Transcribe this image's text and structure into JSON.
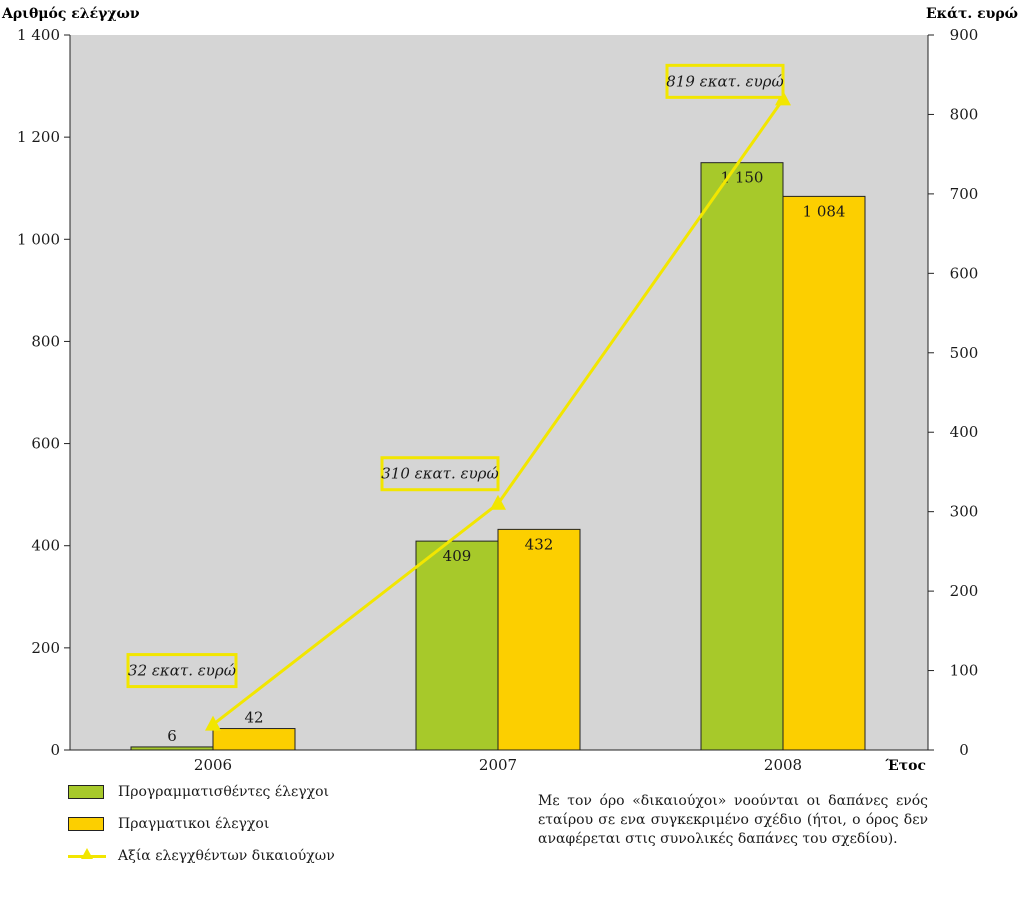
{
  "chart_data": {
    "type": "bar",
    "categories": [
      "2006",
      "2007",
      "2008"
    ],
    "series": [
      {
        "name": "Προγραμματισθέντες έλεγχοι",
        "values": [
          6,
          409,
          1150
        ],
        "labels": [
          "6",
          "409",
          "1 150"
        ],
        "color": "#a7c92a",
        "axis": "left"
      },
      {
        "name": "Πραγματικοί έλεγχοι",
        "values": [
          42,
          432,
          1084
        ],
        "labels": [
          "42",
          "432",
          "1 084"
        ],
        "color": "#fccf00",
        "axis": "left"
      }
    ],
    "line_series": {
      "name": "Αξία ελεγχθέντων δικαιούχων",
      "values": [
        32,
        310,
        819
      ],
      "labels": [
        "32 εκατ. ευρώ",
        "310 εκατ. ευρώ",
        "819 εκατ. ευρώ"
      ],
      "color": "#f2e600",
      "axis": "right"
    },
    "ylabel_left": "Αριθμός ελέγχων",
    "ylabel_right": "Εκάτ. ευρώ",
    "xlabel": "Έτος",
    "ylim_left": [
      0,
      1400
    ],
    "ylim_right": [
      0,
      900
    ],
    "yticks_left": [
      "0",
      "200",
      "400",
      "600",
      "800",
      "1 000",
      "1 200",
      "1 400"
    ],
    "yticks_right": [
      "0",
      "100",
      "200",
      "300",
      "400",
      "500",
      "600",
      "700",
      "800",
      "900"
    ],
    "plot_background": "#d5d5d5",
    "grid": false,
    "legend_position": "bottom-left"
  },
  "legend": {
    "items": [
      "Προγραμματισθέντες έλεγχοι",
      "Πραγματικοι έλεγχοι",
      "Αξία ελεγχθέντων δικαιούχων"
    ]
  },
  "note": "Με τον όρο «δικαιούχοι» νοούνται οι δαπάνες ενός εταίρου σε ενα συγκεκριμένο σχέδιο (ήτοι, ο όρος δεν αναφέρεται στις συνολικές δαπάνες του σχεδίου)."
}
